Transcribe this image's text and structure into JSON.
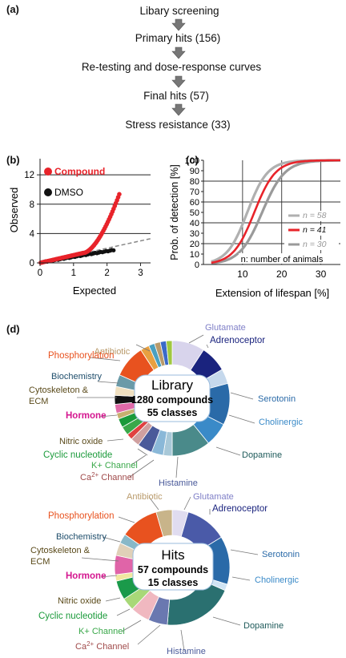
{
  "figure": {
    "panel_a": {
      "label": "(a)",
      "steps": [
        "Libary screening",
        "Primary hits (156)",
        "Re-testing and dose-response curves",
        "Final hits (57)",
        "Stress resistance (33)"
      ]
    },
    "panel_b": {
      "label": "(b)",
      "legend": [
        "Compound",
        "DMSO"
      ],
      "xlabel": "Expected",
      "ylabel": "Observed",
      "xticks": [
        "0",
        "1",
        "2",
        "3"
      ],
      "yticks": [
        "0",
        "4",
        "8",
        "12"
      ]
    },
    "panel_c": {
      "label": "(c)",
      "xlabel": "Extension of lifespan [%]",
      "ylabel": "Prob. of detection [%]",
      "xticks": [
        "10",
        "20",
        "30"
      ],
      "yticks": [
        "0",
        "10",
        "20",
        "30",
        "40",
        "50",
        "60",
        "70",
        "80",
        "90",
        "100"
      ],
      "legend": [
        {
          "label": "n = 58",
          "color": "#b0b0b0"
        },
        {
          "label": "n = 41",
          "color": "#e8232a"
        },
        {
          "label": "n = 30",
          "color": "#9a9a9a"
        }
      ],
      "note": "n: number of animals"
    },
    "panel_d": {
      "label": "(d)",
      "library": {
        "title": "Library",
        "line1": "1280 compounds",
        "line2": "55 classes",
        "labels": [
          "Antibiotic",
          "Glutamate",
          "Adrenoceptor",
          "Phosphorylation",
          "Biochemistry",
          "Cytoskeleton &",
          "ECM",
          "Serotonin",
          "Hormone",
          "Cholinergic",
          "Nitric oxide",
          "Dopamine",
          "Cyclic nucleotide",
          "K+ Channel",
          "Ca",
          "2+",
          " Channel",
          "Histamine"
        ]
      },
      "hits": {
        "title": "Hits",
        "line1": "57 compounds",
        "line2": "15 classes",
        "labels": [
          "Antibiotic",
          "Glutamate",
          "Adrenoceptor",
          "Phosphorylation",
          "Biochemistry",
          "Serotonin",
          "Cytoskeleton &",
          "ECM",
          "Hormone",
          "Cholinergic",
          "Nitric oxide",
          "Cyclic nucleotide",
          "Dopamine",
          "K+ Channel",
          "Ca",
          "2+",
          " Channel",
          "Histamine"
        ]
      },
      "colors": {
        "antibiotic": "#b99a6a",
        "glutamate": "#8080c8",
        "adrenoceptor": "#1a237e",
        "phosphorylation": "#e8521f",
        "biochemistry": "#1e4d6b",
        "hormone": "#d4168f",
        "nitric_oxide": "#5a4a1a",
        "cyclic": "#1a9a3a",
        "kchannel": "#3aa84a",
        "ca": "#a04a4a",
        "histamine": "#4a5a9a",
        "dopamine": "#1e5a5a",
        "serotonin": "#2a6aa8",
        "cholinergic": "#3a8ac8"
      }
    }
  }
}
